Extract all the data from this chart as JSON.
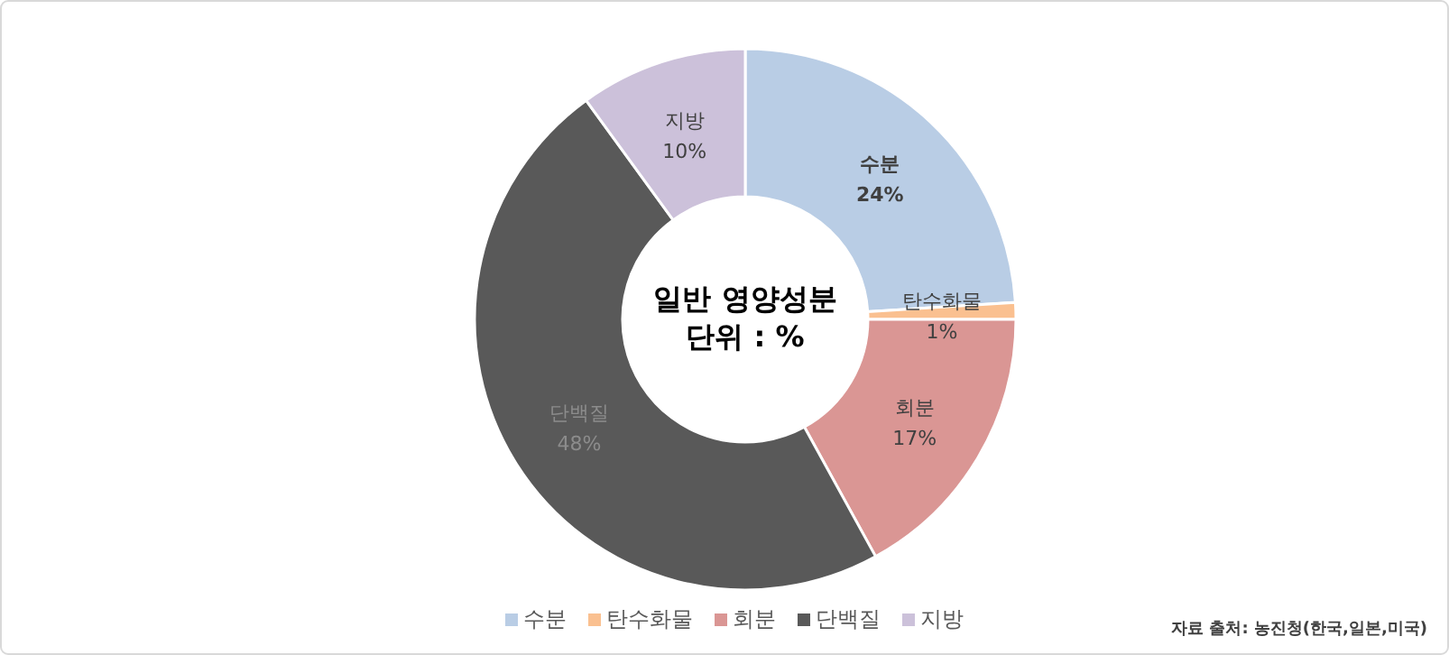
{
  "chart_data": {
    "type": "donut",
    "title": "일반 영양성분",
    "subtitle": "단위 : %",
    "categories": [
      "수분",
      "탄수화물",
      "회분",
      "단백질",
      "지방"
    ],
    "values": [
      24,
      1,
      17,
      48,
      10
    ],
    "colors": [
      "#b9cde5",
      "#fac090",
      "#da9694",
      "#595959",
      "#ccc1da"
    ],
    "value_labels": [
      "24%",
      "1%",
      "17%",
      "48%",
      "10%"
    ],
    "legend": "bottom",
    "annotations": [
      "자료 출처: 농진청(한국,일본,미국)"
    ]
  }
}
